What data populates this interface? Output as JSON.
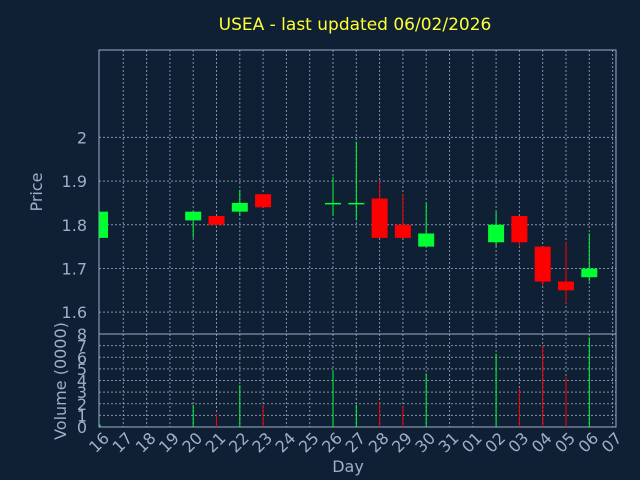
{
  "colors": {
    "background": "#0f2035",
    "frame": "#9cb0c8",
    "grid": "#9cb0c8",
    "title": "#ffff33",
    "label": "#9cb0c8",
    "up": "#00ff33",
    "down": "#ff0000"
  },
  "chart_data": {
    "type": "candlestick",
    "title": "USEA - last updated 06/02/2026",
    "xlabel": "Day",
    "price_panel": {
      "ylabel": "Price",
      "ylim": [
        1.55,
        2.2
      ],
      "yticks": [
        1.6,
        1.7,
        1.8,
        1.9,
        2.0
      ],
      "ytick_labels": [
        "1.6",
        "1.7",
        "1.8",
        "1.9",
        "2"
      ]
    },
    "volume_panel": {
      "ylabel": "Volume (0000)",
      "ylim": [
        0,
        8
      ],
      "yticks": [
        0,
        1,
        2,
        3,
        4,
        5,
        6,
        7,
        8
      ],
      "ytick_labels": [
        "0",
        "1",
        "2",
        "3",
        "4",
        "5",
        "6",
        "7",
        "8"
      ]
    },
    "x_tick_labels": [
      "16",
      "17",
      "18",
      "19",
      "20",
      "21",
      "22",
      "23",
      "24",
      "25",
      "26",
      "27",
      "28",
      "29",
      "30",
      "31",
      "01",
      "02",
      "03",
      "04",
      "05",
      "06",
      "07"
    ],
    "candles": [
      {
        "day": "16",
        "open": 1.77,
        "close": 1.83,
        "high": 1.83,
        "low": 1.77,
        "volume": 0.2
      },
      {
        "day": "20",
        "open": 1.81,
        "close": 1.83,
        "high": 1.83,
        "low": 1.77,
        "volume": 1.9
      },
      {
        "day": "21",
        "open": 1.82,
        "close": 1.8,
        "high": 1.82,
        "low": 1.8,
        "volume": 1.1
      },
      {
        "day": "22",
        "open": 1.83,
        "close": 1.85,
        "high": 1.88,
        "low": 1.82,
        "volume": 3.6
      },
      {
        "day": "23",
        "open": 1.87,
        "close": 1.84,
        "high": 1.87,
        "low": 1.84,
        "volume": 1.9
      },
      {
        "day": "26",
        "open": 1.85,
        "close": 1.85,
        "high": 1.91,
        "low": 1.82,
        "volume": 4.9
      },
      {
        "day": "27",
        "open": 1.85,
        "close": 1.85,
        "high": 1.99,
        "low": 1.81,
        "volume": 1.9
      },
      {
        "day": "28",
        "open": 1.86,
        "close": 1.77,
        "high": 1.9,
        "low": 1.77,
        "volume": 2.1
      },
      {
        "day": "29",
        "open": 1.8,
        "close": 1.77,
        "high": 1.87,
        "low": 1.77,
        "volume": 1.8
      },
      {
        "day": "30",
        "open": 1.75,
        "close": 1.78,
        "high": 1.85,
        "low": 1.75,
        "volume": 4.6
      },
      {
        "day": "02",
        "open": 1.76,
        "close": 1.8,
        "high": 1.83,
        "low": 1.75,
        "volume": 6.3
      },
      {
        "day": "03",
        "open": 1.82,
        "close": 1.76,
        "high": 1.82,
        "low": 1.75,
        "volume": 3.3
      },
      {
        "day": "04",
        "open": 1.75,
        "close": 1.67,
        "high": 1.75,
        "low": 1.66,
        "volume": 7.0
      },
      {
        "day": "05",
        "open": 1.67,
        "close": 1.65,
        "high": 1.76,
        "low": 1.62,
        "volume": 4.3
      },
      {
        "day": "06",
        "open": 1.68,
        "close": 1.7,
        "high": 1.78,
        "low": 1.67,
        "volume": 7.7
      }
    ],
    "grid": true,
    "legend": false
  }
}
